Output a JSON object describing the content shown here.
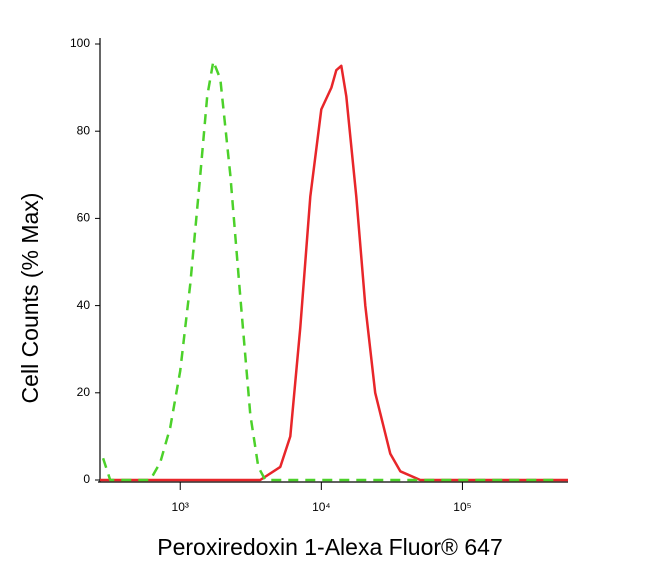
{
  "chart_data": {
    "type": "line",
    "x_label": "Peroxiredoxin 1-Alexa Fluor® 647",
    "y_label": "Cell Counts (% Max)",
    "xscale": "log",
    "xlim": [
      270,
      560000
    ],
    "xticks": [
      {
        "value": 1000,
        "label": "10³"
      },
      {
        "value": 10000,
        "label": "10⁴"
      },
      {
        "value": 100000,
        "label": "10⁵"
      }
    ],
    "ylim": [
      0,
      100
    ],
    "yticks": [
      0,
      20,
      40,
      60,
      80,
      100
    ],
    "series": [
      {
        "color": "#e8262a",
        "dash": false,
        "x": [
          270,
          3690,
          5120,
          6030,
          7100,
          8350,
          10000,
          11780,
          12770,
          13860,
          15040,
          17700,
          20500,
          24100,
          30800,
          36300,
          50300,
          560000
        ],
        "values": [
          0,
          0,
          3,
          10,
          35,
          65,
          85,
          90,
          94,
          95,
          88,
          65,
          40,
          20,
          6,
          2,
          0,
          0
        ]
      },
      {
        "color": "#4cd12a",
        "dash": true,
        "x": [
          284,
          319,
          613,
          721,
          849,
          1000,
          1178,
          1387,
          1553,
          1714,
          1923,
          2264,
          2667,
          3135,
          3573,
          4010,
          495000
        ],
        "values": [
          5,
          0,
          0,
          4,
          12,
          25,
          45,
          70,
          88,
          96,
          92,
          70,
          42,
          15,
          3,
          0,
          0
        ]
      }
    ]
  }
}
